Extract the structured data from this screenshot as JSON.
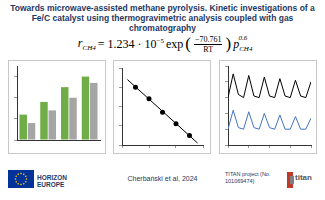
{
  "title": "Towards microwave-assisted methane pyrolysis. Kinetic investigations of a Fe/C catalyst using thermogravimetric analysis coupled with gas chromatography",
  "equation": {
    "lhs": "r",
    "lhs_sub": "CH4",
    "factor": "= 1.234 · 10",
    "factor_power": "−5",
    "func": "exp",
    "numerator": "−70.761",
    "denominator": "RT",
    "p": "p",
    "p_sub": "CH4",
    "p_power": "0.6"
  },
  "chart_data": [
    {
      "type": "bar",
      "categories": [
        null,
        null,
        null,
        null
      ],
      "series": [
        {
          "color": "#70ad47",
          "values": [
            12,
            18,
            25,
            30
          ]
        },
        {
          "color": "#a5a5a5",
          "values": [
            8,
            14,
            20,
            27
          ]
        }
      ],
      "ylim": [
        0,
        35
      ],
      "yticks": [
        0,
        10,
        20,
        30
      ],
      "grid": false,
      "tick_labels": false
    },
    {
      "type": "scatter",
      "series": [
        {
          "type": "scatter",
          "color": "#000000",
          "marker": "circle",
          "x": [
            1.05,
            1.1,
            1.15,
            1.2,
            1.25
          ],
          "values": [
            -8.0,
            -8.6,
            -9.3,
            -9.9,
            -10.5
          ]
        },
        {
          "type": "line",
          "color": "#000000",
          "line_style": "solid",
          "x": [
            1.02,
            1.28
          ],
          "values": [
            -7.6,
            -10.9
          ]
        }
      ],
      "xlim": [
        1.0,
        1.3
      ],
      "xticks": [
        1.0,
        1.1,
        1.2,
        1.3
      ],
      "ylim": [
        -11,
        -7
      ],
      "yticks": [
        -11,
        -10,
        -9,
        -8,
        -7
      ],
      "grid": false,
      "tick_labels": false
    },
    {
      "type": "line",
      "x": [
        0,
        1,
        2,
        3,
        4,
        5,
        6,
        7,
        8,
        9,
        10,
        11,
        12,
        13,
        14,
        15,
        16
      ],
      "series": [
        {
          "color": "#000000",
          "line_style": "solid",
          "marker": "none",
          "values": [
            3.0,
            4.5,
            3.2,
            3.0,
            4.4,
            3.1,
            3.0,
            4.3,
            3.1,
            3.0,
            4.2,
            3.1,
            3.0,
            4.1,
            3.1,
            3.0,
            4.0
          ]
        },
        {
          "color": "#4472c4",
          "line_style": "solid",
          "marker": "none",
          "values": [
            1.0,
            2.2,
            1.1,
            1.0,
            2.1,
            1.1,
            1.0,
            2.0,
            1.1,
            1.0,
            1.9,
            1.0,
            1.0,
            1.8,
            1.0,
            1.0,
            1.7
          ]
        }
      ],
      "xlim": [
        0,
        16
      ],
      "xticks": [
        0,
        4,
        8,
        12,
        16
      ],
      "ylim": [
        0,
        5
      ],
      "yticks": [
        0,
        1,
        2,
        3,
        4,
        5
      ],
      "grid": false,
      "tick_labels": false
    }
  ],
  "footer": {
    "funding": "HORIZON EUROPE",
    "citation": "Cherbański et al, 2024",
    "project": "TITAN project (No. 101069474)",
    "logo": "titan"
  }
}
